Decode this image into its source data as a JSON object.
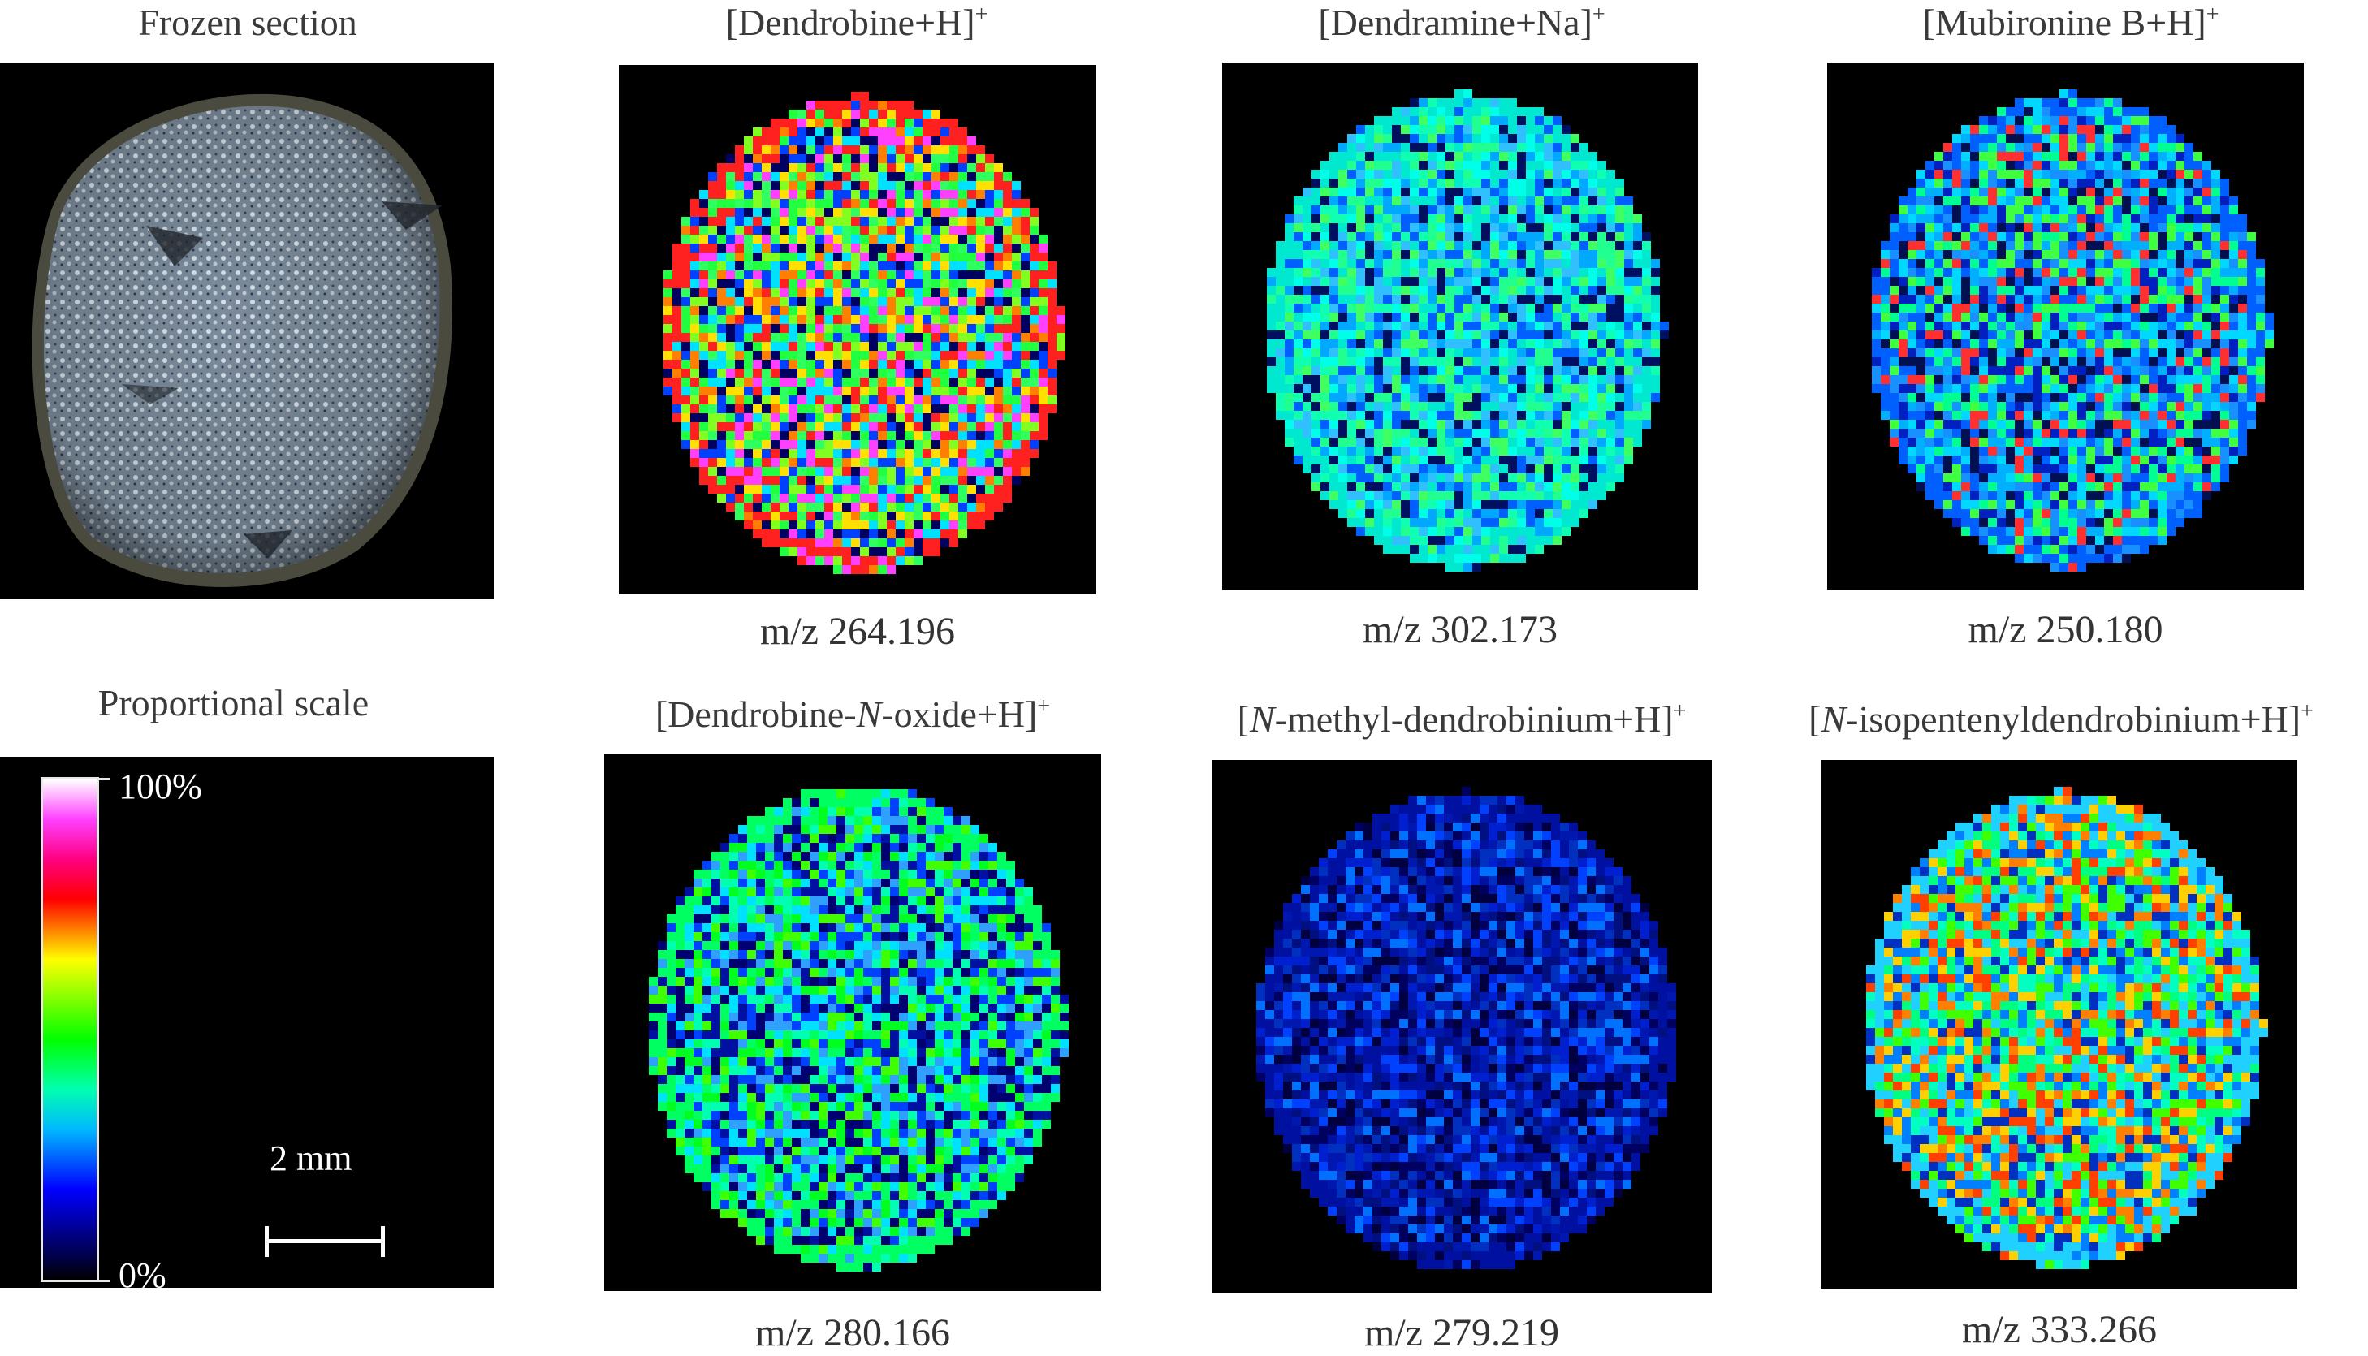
{
  "labels": {
    "frozen": "Frozen section",
    "proportional": "Proportional scale",
    "dendrobine": "Dendrobine+H",
    "dendramine": "Dendramine+Na",
    "mubironine": "Mubironine B+H",
    "oxide_a": "Dendrobine-",
    "oxide_n": "N",
    "oxide_b": "-oxide+H",
    "methyl_n": "N",
    "methyl_b": "-methyl-dendrobinium+H",
    "isopent_n": "N",
    "isopent_b": "-isopentenyldendrobinium+H",
    "plus": "+",
    "open": "[",
    "close": "]"
  },
  "mz": {
    "p1": "m/z 264.196",
    "p2": "m/z 302.173",
    "p3": "m/z 250.180",
    "p4": "m/z 280.166",
    "p5": "m/z 279.219",
    "p6": "m/z 333.266"
  },
  "scale": {
    "max": "100%",
    "min": "0%",
    "bar": "2 mm"
  },
  "colors": {
    "background": "#000000",
    "section_fill": "#8a9aa8",
    "section_edge": "#5a5a48",
    "p1_base": "#2aff5a",
    "p2_base": "#10d8c8",
    "p3_base": "#1a8cf0",
    "p4_base": "#14e0a0",
    "p5_base": "#0a28c8",
    "p6_base": "#28a0e0"
  }
}
